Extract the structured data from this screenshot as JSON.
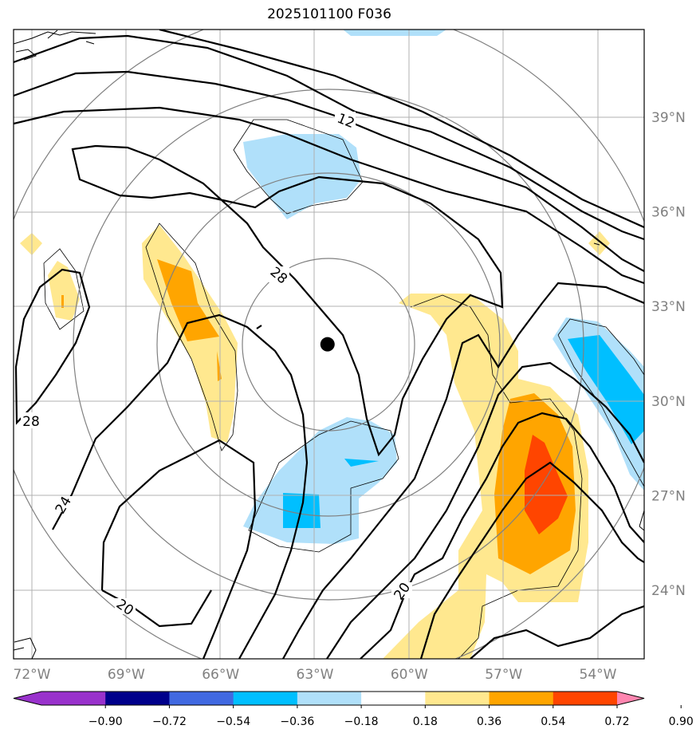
{
  "chart_data": {
    "type": "contour-map",
    "title": "2025101100 F036",
    "x_ticks": [
      "72°W",
      "69°W",
      "66°W",
      "63°W",
      "60°W",
      "57°W",
      "54°W"
    ],
    "x_tick_values": [
      -72,
      -69,
      -66,
      -63,
      -60,
      -57,
      -54
    ],
    "y_ticks": [
      "39°N",
      "36°N",
      "33°N",
      "30°N",
      "27°N",
      "24°N"
    ],
    "y_tick_values": [
      39,
      36,
      33,
      30,
      27,
      24
    ],
    "contour_labels": [
      "12",
      "28",
      "28",
      "24",
      "20",
      "20"
    ],
    "center_marker": {
      "lon": -62.6,
      "lat": 31.8
    },
    "colorbar": {
      "ticks": [
        "−0.90",
        "−0.72",
        "−0.54",
        "−0.36",
        "−0.18",
        "0.18",
        "0.36",
        "0.54",
        "0.72",
        "0.90"
      ],
      "colors": [
        "#9932cc",
        "#00008b",
        "#4169e1",
        "#00bfff",
        "#b0e0fa",
        "#ffffff",
        "#ffe88f",
        "#ffa500",
        "#ff4500",
        "#b22222",
        "#ff86b0"
      ]
    }
  }
}
